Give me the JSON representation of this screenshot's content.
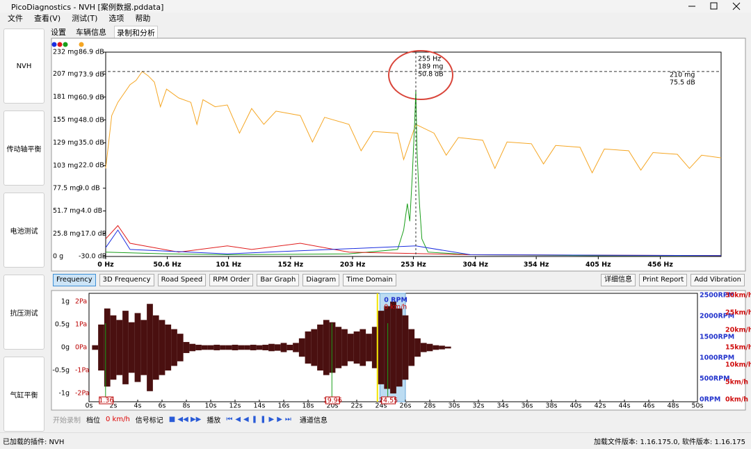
{
  "window": {
    "title": "PicoDiagnostics - NVH [案例数据.pddata]"
  },
  "menu": [
    "文件",
    "查看(V)",
    "测试(T)",
    "选项",
    "帮助"
  ],
  "sidebar": [
    "NVH",
    "传动轴平衡",
    "电池测试",
    "抗压测试",
    "气缸平衡"
  ],
  "tabs": [
    "设置",
    "车辆信息",
    "录制和分析"
  ],
  "chart_data": [
    {
      "type": "line",
      "xlim": [
        0,
        506
      ],
      "ylim": [
        0,
        232
      ],
      "y2lim": [
        -30,
        86.9
      ],
      "xticks": [
        {
          "value": 0,
          "label": "0 Hz"
        },
        {
          "value": 50.6,
          "label": "50.6 Hz"
        },
        {
          "value": 101,
          "label": "101 Hz"
        },
        {
          "value": 152,
          "label": "152 Hz"
        },
        {
          "value": 203,
          "label": "203 Hz"
        },
        {
          "value": 253,
          "label": "253 Hz"
        },
        {
          "value": 304,
          "label": "304 Hz"
        },
        {
          "value": 354,
          "label": "354 Hz"
        },
        {
          "value": 405,
          "label": "405 Hz"
        },
        {
          "value": 456,
          "label": "456 Hz"
        }
      ],
      "yticks": [
        {
          "value": 232,
          "label": "232 mg"
        },
        {
          "value": 207,
          "label": "207 mg"
        },
        {
          "value": 181,
          "label": "181 mg"
        },
        {
          "value": 155,
          "label": "155 mg"
        },
        {
          "value": 129,
          "label": "129 mg"
        },
        {
          "value": 103,
          "label": "103 mg"
        },
        {
          "value": 77.5,
          "label": "77.5 mg"
        },
        {
          "value": 51.7,
          "label": "51.7 mg"
        },
        {
          "value": 25.8,
          "label": "25.8 mg"
        },
        {
          "value": 0,
          "label": "0 g"
        }
      ],
      "y2ticks": [
        {
          "value": 86.9,
          "label": "86.9 dB"
        },
        {
          "value": 73.9,
          "label": "73.9 dB"
        },
        {
          "value": 60.9,
          "label": "60.9 dB"
        },
        {
          "value": 48.0,
          "label": "48.0 dB"
        },
        {
          "value": 35.0,
          "label": "35.0 dB"
        },
        {
          "value": 22.0,
          "label": "22.0 dB"
        },
        {
          "value": 9.0,
          "label": "9.0 dB"
        },
        {
          "value": -4.0,
          "label": "-4.0 dB"
        },
        {
          "value": -17.0,
          "label": "-17.0 dB"
        },
        {
          "value": -30.0,
          "label": "-30.0 dB"
        }
      ],
      "series": [
        {
          "color": "#f5a623",
          "x": [
            0,
            5,
            10,
            15,
            20,
            25,
            30,
            35,
            40,
            45,
            50,
            60,
            70,
            75,
            80,
            90,
            100,
            110,
            120,
            130,
            140,
            160,
            170,
            180,
            200,
            210,
            220,
            240,
            245,
            255,
            270,
            280,
            290,
            310,
            320,
            330,
            350,
            360,
            370,
            390,
            400,
            410,
            430,
            440,
            450,
            470,
            480,
            490,
            506
          ],
          "values": [
            100,
            160,
            175,
            185,
            195,
            200,
            210,
            205,
            198,
            170,
            190,
            180,
            175,
            150,
            178,
            170,
            172,
            140,
            168,
            150,
            165,
            160,
            130,
            158,
            150,
            120,
            142,
            140,
            110,
            150,
            140,
            115,
            135,
            132,
            100,
            130,
            128,
            105,
            126,
            124,
            95,
            122,
            120,
            98,
            118,
            116,
            100,
            115,
            112
          ]
        },
        {
          "color": "#1a9e1a",
          "x": [
            0,
            50,
            100,
            200,
            240,
            245,
            248,
            250,
            252,
            254,
            255,
            256,
            258,
            260,
            265,
            300,
            400,
            506
          ],
          "values": [
            5,
            3,
            2,
            3,
            8,
            30,
            60,
            40,
            90,
            150,
            189,
            120,
            60,
            20,
            5,
            2,
            1,
            1
          ]
        },
        {
          "color": "#e01b1b",
          "x": [
            0,
            10,
            20,
            60,
            100,
            120,
            160,
            200,
            300,
            506
          ],
          "values": [
            20,
            35,
            15,
            5,
            12,
            8,
            15,
            5,
            2,
            1
          ]
        },
        {
          "color": "#1b2ee0",
          "x": [
            0,
            10,
            20,
            100,
            255,
            300,
            506
          ],
          "values": [
            10,
            30,
            8,
            3,
            12,
            2,
            1
          ]
        }
      ],
      "cursor": {
        "x": 255,
        "x_label": "255 Hz",
        "value": 189,
        "value_label": "189 mg",
        "db_label": "50.8 dB"
      },
      "reference": {
        "value": 210,
        "label": "210 mg",
        "db_label": "75.5 dB"
      }
    },
    {
      "type": "area",
      "xlim": [
        0,
        50
      ],
      "ylim": [
        -1.18,
        1.18
      ],
      "pa_lim": [
        -2.36,
        2.36
      ],
      "rpm_lim": [
        -52,
        2552
      ],
      "speed_lim": [
        -0.62,
        30.62
      ],
      "yticks": [
        {
          "value": 1,
          "label": "1g"
        },
        {
          "value": 0.5,
          "label": "0.5g"
        },
        {
          "value": 0,
          "label": "0g"
        },
        {
          "value": -0.5,
          "label": "-0.5g"
        },
        {
          "value": -1,
          "label": "-1g"
        }
      ],
      "pa_ticks": [
        {
          "value": 2,
          "label": "2Pa"
        },
        {
          "value": 1,
          "label": "1Pa"
        },
        {
          "value": 0,
          "label": "0Pa"
        },
        {
          "value": -1,
          "label": "-1Pa"
        },
        {
          "value": -2,
          "label": "-2Pa"
        }
      ],
      "rpm_ticks": [
        {
          "value": 2500,
          "label": "2500RPM"
        },
        {
          "value": 2000,
          "label": "2000RPM"
        },
        {
          "value": 1500,
          "label": "1500RPM"
        },
        {
          "value": 1000,
          "label": "1000RPM"
        },
        {
          "value": 500,
          "label": "500RPM"
        },
        {
          "value": 0,
          "label": "0RPM"
        }
      ],
      "speed_ticks": [
        {
          "value": 30,
          "label": "30km/h"
        },
        {
          "value": 25,
          "label": "25km/h"
        },
        {
          "value": 20,
          "label": "20km/h"
        },
        {
          "value": 15,
          "label": "15km/h"
        },
        {
          "value": 10,
          "label": "10km/h"
        },
        {
          "value": 5,
          "label": "5km/h"
        },
        {
          "value": 0,
          "label": "0km/h"
        }
      ],
      "xticks": [
        {
          "value": 0,
          "label": "0s"
        },
        {
          "value": 2,
          "label": "2s"
        },
        {
          "value": 4,
          "label": "4s"
        },
        {
          "value": 6,
          "label": "6s"
        },
        {
          "value": 8,
          "label": "8s"
        },
        {
          "value": 10,
          "label": "10s"
        },
        {
          "value": 12,
          "label": "12s"
        },
        {
          "value": 14,
          "label": "14s"
        },
        {
          "value": 16,
          "label": "16s"
        },
        {
          "value": 18,
          "label": "18s"
        },
        {
          "value": 20,
          "label": "20s"
        },
        {
          "value": 22,
          "label": "22s"
        },
        {
          "value": 24,
          "label": "24s"
        },
        {
          "value": 26,
          "label": "26s"
        },
        {
          "value": 28,
          "label": "28s"
        },
        {
          "value": 30,
          "label": "30s"
        },
        {
          "value": 32,
          "label": "32s"
        },
        {
          "value": 34,
          "label": "34s"
        },
        {
          "value": 36,
          "label": "36s"
        },
        {
          "value": 38,
          "label": "38s"
        },
        {
          "value": 40,
          "label": "40s"
        },
        {
          "value": 42,
          "label": "42s"
        },
        {
          "value": 44,
          "label": "44s"
        },
        {
          "value": 46,
          "label": "46s"
        },
        {
          "value": 48,
          "label": "48s"
        },
        {
          "value": 50,
          "label": "50s"
        }
      ],
      "color": "#4a1010",
      "x": [
        0.5,
        1,
        1.5,
        2,
        2.5,
        3,
        3.5,
        4,
        4.5,
        5,
        5.5,
        6,
        6.5,
        7,
        7.5,
        8,
        8.5,
        9,
        9.5,
        10,
        10.5,
        11,
        11.5,
        12,
        12.5,
        13,
        13.5,
        14,
        14.5,
        15,
        15.5,
        16,
        16.5,
        17,
        17.5,
        18,
        18.5,
        19,
        19.5,
        20,
        20.5,
        21,
        21.5,
        22,
        22.5,
        23,
        23.5,
        24,
        24.5,
        25,
        25.5,
        26,
        26.5,
        27,
        27.5,
        28,
        28.5,
        29,
        29.5
      ],
      "values": [
        0.05,
        0.5,
        0.85,
        0.7,
        0.6,
        0.8,
        0.55,
        0.75,
        0.6,
        0.95,
        0.7,
        0.6,
        0.5,
        0.4,
        0.3,
        0.12,
        0.08,
        0.06,
        0.05,
        0.05,
        0.06,
        0.05,
        0.05,
        0.06,
        0.05,
        0.05,
        0.06,
        0.05,
        0.06,
        0.08,
        0.07,
        0.1,
        0.06,
        0.1,
        0.2,
        0.35,
        0.4,
        0.5,
        0.6,
        0.55,
        0.45,
        0.4,
        0.3,
        0.35,
        0.4,
        0.3,
        0.45,
        0.8,
        0.9,
        1.0,
        0.85,
        0.7,
        0.4,
        0.2,
        0.1,
        0.08,
        0.05,
        0.04,
        0.02
      ],
      "markers": [
        1.36,
        19.96,
        24.55
      ],
      "selection": [
        23.9,
        26.0
      ],
      "play_position": 23.7,
      "selection_labels": [
        "0 RPM",
        "0 km/h"
      ]
    }
  ],
  "buttons": [
    "Frequency",
    "3D Frequency",
    "Road Speed",
    "RPM Order",
    "Bar Graph",
    "Diagram",
    "Time Domain"
  ],
  "buttons_right": [
    "详细信息",
    "Print Report",
    "Add Vibration"
  ],
  "toolbar": {
    "record": "开始录制",
    "gear": "档位",
    "speed": "0 km/h",
    "signal": "信号标记",
    "play": "播放",
    "channel": "通道信息"
  },
  "status": {
    "left": "已加载的插件: NVH",
    "right": "加载文件版本: 1.16.175.0, 软件版本: 1.16.175"
  }
}
